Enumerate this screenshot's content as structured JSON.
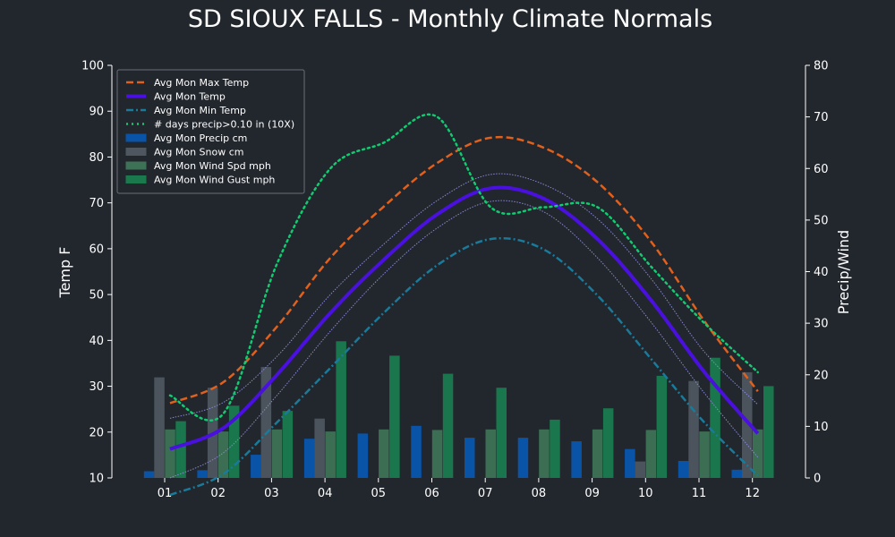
{
  "chart_data": {
    "type": "bar+line",
    "title": "SD SIOUX FALLS - Monthly Climate Normals",
    "ylabel_left": "Temp F",
    "ylabel_right": "Precip/Wind",
    "ylim_left": [
      10,
      100
    ],
    "ylim_right": [
      0,
      80
    ],
    "yticks_left": [
      "10",
      "20",
      "30",
      "40",
      "50",
      "60",
      "70",
      "80",
      "90",
      "100"
    ],
    "yticks_right": [
      "0",
      "10",
      "20",
      "30",
      "40",
      "50",
      "60",
      "70",
      "80"
    ],
    "categories": [
      "01",
      "02",
      "03",
      "04",
      "05",
      "06",
      "07",
      "08",
      "09",
      "10",
      "11",
      "12"
    ],
    "legend_position": "upper-left",
    "grid": false,
    "colors": {
      "background": "#22262d",
      "max_temp": "#e0601c",
      "mean_temp": "#4a10e0",
      "min_temp": "#1a7a9a",
      "precip_days": "#10cc70",
      "precip": "#0a54a8",
      "snow": "#4e5660",
      "wind": "#3e7256",
      "gust": "#1a7a4e",
      "band": "#8888cc"
    },
    "line_series": [
      {
        "name": "Avg Mon Max Temp",
        "axis": "left",
        "style": "dashed",
        "values": [
          26.3,
          30.9,
          43.0,
          58.0,
          69.2,
          78.7,
          84.2,
          82.0,
          74.5,
          61.6,
          44.2,
          28.9
        ]
      },
      {
        "name": "Avg Mon Temp",
        "axis": "left",
        "style": "solid",
        "values": [
          16.3,
          20.9,
          32.5,
          46.0,
          57.6,
          67.5,
          73.2,
          70.9,
          62.1,
          48.8,
          33.1,
          19.7
        ]
      },
      {
        "name": "Avg Mon Min Temp",
        "axis": "left",
        "style": "dashdot",
        "values": [
          6.3,
          10.9,
          22.1,
          34.0,
          46.0,
          56.4,
          62.1,
          59.8,
          49.8,
          36.0,
          22.1,
          10.5
        ]
      },
      {
        "name": "# days precip>0.10 in (10X)",
        "axis": "right",
        "style": "dotted",
        "values": [
          16.0,
          12.5,
          41.5,
          60.0,
          65.0,
          70.0,
          52.5,
          52.5,
          52.5,
          41.0,
          30.0,
          20.5
        ]
      }
    ],
    "mean_temp_band": {
      "upper": [
        23.0,
        26.5,
        36.5,
        50.0,
        61.0,
        70.5,
        76.2,
        74.0,
        66.5,
        53.5,
        37.5,
        26.0
      ],
      "lower": [
        10.0,
        15.5,
        28.0,
        42.0,
        54.5,
        64.5,
        70.3,
        68.0,
        58.0,
        44.0,
        28.5,
        14.5
      ]
    },
    "bar_series": [
      {
        "name": "Avg Mon Precip cm",
        "values": [
          1.3,
          1.5,
          4.5,
          7.6,
          8.6,
          10.1,
          7.8,
          7.8,
          7.1,
          5.6,
          3.3,
          1.6
        ]
      },
      {
        "name": "Avg Mon Snow cm",
        "values": [
          19.5,
          17.5,
          21.5,
          11.5,
          0,
          0,
          0,
          0,
          0,
          3.2,
          18.8,
          20.5
        ]
      },
      {
        "name": "Avg Mon Wind Spd mph",
        "values": [
          9.4,
          9.0,
          9.4,
          9.0,
          9.4,
          9.3,
          9.4,
          9.4,
          9.4,
          9.3,
          9.0,
          9.4
        ]
      },
      {
        "name": "Avg Mon Wind Gust mph",
        "values": [
          11.0,
          14.0,
          13.0,
          26.5,
          23.7,
          20.2,
          17.5,
          11.3,
          13.5,
          19.8,
          23.3,
          17.8
        ]
      }
    ]
  }
}
